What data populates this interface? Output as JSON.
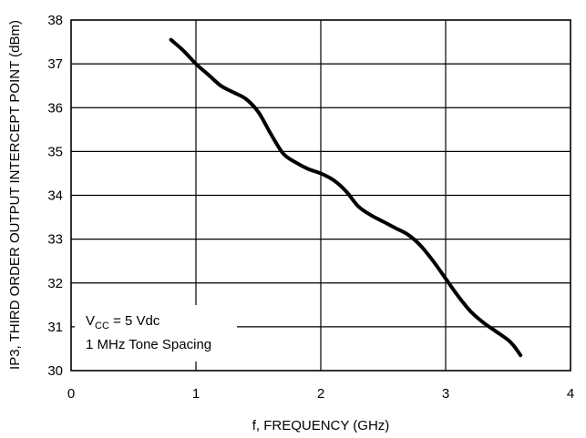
{
  "chart_data": {
    "type": "line",
    "title": "",
    "xlabel": "f, FREQUENCY (GHz)",
    "ylabel": "IP3, THIRD ORDER OUTPUT INTERCEPT POINT (dBm)",
    "xlim": [
      0,
      4
    ],
    "ylim": [
      30,
      38
    ],
    "xticks": [
      "0",
      "1",
      "2",
      "3",
      "4"
    ],
    "yticks": [
      "30",
      "31",
      "32",
      "33",
      "34",
      "35",
      "36",
      "37",
      "38"
    ],
    "grid": true,
    "series": [
      {
        "x": [
          0.8,
          0.9,
          1.0,
          1.1,
          1.2,
          1.3,
          1.4,
          1.5,
          1.6,
          1.7,
          1.8,
          1.9,
          2.0,
          2.1,
          2.2,
          2.3,
          2.4,
          2.5,
          2.6,
          2.7,
          2.8,
          2.9,
          3.0,
          3.1,
          3.2,
          3.3,
          3.4,
          3.5,
          3.55,
          3.6
        ],
        "y": [
          37.55,
          37.3,
          37.0,
          36.75,
          36.5,
          36.35,
          36.2,
          35.9,
          35.4,
          34.95,
          34.75,
          34.6,
          34.5,
          34.35,
          34.1,
          33.75,
          33.55,
          33.4,
          33.25,
          33.1,
          32.85,
          32.5,
          32.1,
          31.7,
          31.35,
          31.1,
          30.9,
          30.7,
          30.55,
          30.35
        ]
      }
    ],
    "annotation": {
      "line1_main": "V",
      "line1_sub": "CC",
      "line1_rest": " = 5 Vdc",
      "line2": "1 MHz Tone Spacing"
    }
  }
}
